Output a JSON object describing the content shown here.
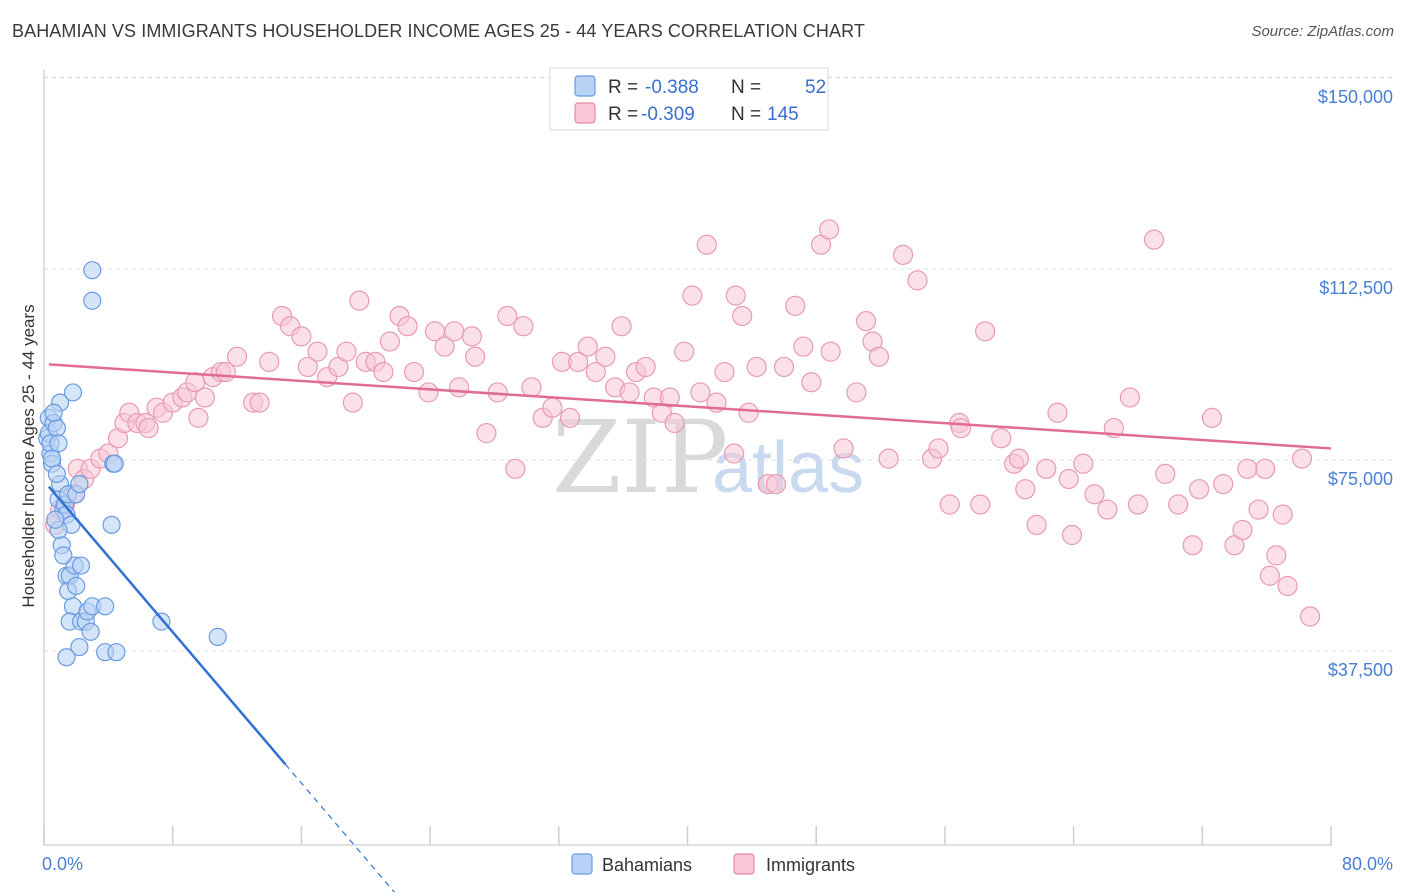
{
  "title": "BAHAMIAN VS IMMIGRANTS HOUSEHOLDER INCOME AGES 25 - 44 YEARS CORRELATION CHART",
  "source": "Source: ZipAtlas.com",
  "watermark": {
    "zip": "ZIP",
    "atlas": "atlas"
  },
  "legend": {
    "r_label": "R =",
    "n_label": "N =",
    "rows": [
      {
        "name": "Bahamians",
        "r": "-0.388",
        "n": "52",
        "fill": "#b8d2f5",
        "stroke": "#6a9be0"
      },
      {
        "name": "Immigrants",
        "r": "-0.309",
        "n": "145",
        "fill": "#f8c6d6",
        "stroke": "#e88aa8"
      }
    ]
  },
  "chart_data": {
    "type": "scatter",
    "xlabel": "",
    "ylabel": "Householder Income Ages 25 - 44 years",
    "xlim": [
      0,
      80
    ],
    "ylim": [
      0,
      150000
    ],
    "x_tick_labels": {
      "left": "0.0%",
      "right": "80.0%"
    },
    "y_ticks": [
      {
        "value": 150000,
        "label": "$150,000"
      },
      {
        "value": 112500,
        "label": "$112,500"
      },
      {
        "value": 75000,
        "label": "$75,000"
      },
      {
        "value": 37500,
        "label": "$37,500"
      }
    ],
    "series": [
      {
        "name": "Bahamians",
        "color": "#6a9be0",
        "fill": "#b8d2f5",
        "trend": {
          "x0": 0.3,
          "y0": 73500,
          "x1": 15.0,
          "y1": 19000,
          "dash_to_x": 22.0
        },
        "points": [
          [
            0.2,
            83000
          ],
          [
            0.3,
            87000
          ],
          [
            0.3,
            84000
          ],
          [
            0.4,
            80000
          ],
          [
            0.4,
            82000
          ],
          [
            0.5,
            78000
          ],
          [
            0.6,
            86000
          ],
          [
            0.5,
            79000
          ],
          [
            0.8,
            85000
          ],
          [
            0.9,
            82000
          ],
          [
            1.0,
            90000
          ],
          [
            1.0,
            74000
          ],
          [
            0.9,
            71000
          ],
          [
            1.2,
            69000
          ],
          [
            1.3,
            70000
          ],
          [
            1.4,
            68000
          ],
          [
            1.5,
            72000
          ],
          [
            1.8,
            92000
          ],
          [
            2.0,
            72000
          ],
          [
            2.2,
            74000
          ],
          [
            1.7,
            66000
          ],
          [
            1.1,
            62000
          ],
          [
            1.4,
            56000
          ],
          [
            1.6,
            56000
          ],
          [
            1.9,
            58000
          ],
          [
            2.3,
            58000
          ],
          [
            1.5,
            53000
          ],
          [
            1.8,
            50000
          ],
          [
            1.6,
            47000
          ],
          [
            2.3,
            47000
          ],
          [
            2.6,
            47000
          ],
          [
            2.7,
            49000
          ],
          [
            3.0,
            50000
          ],
          [
            3.8,
            50000
          ],
          [
            2.9,
            45000
          ],
          [
            2.2,
            42000
          ],
          [
            1.4,
            40000
          ],
          [
            3.8,
            41000
          ],
          [
            4.5,
            41000
          ],
          [
            4.3,
            78000
          ],
          [
            4.4,
            78000
          ],
          [
            4.2,
            66000
          ],
          [
            3.0,
            116000
          ],
          [
            3.0,
            110000
          ],
          [
            7.3,
            47000
          ],
          [
            10.8,
            44000
          ],
          [
            0.9,
            65000
          ],
          [
            0.7,
            67000
          ],
          [
            1.2,
            60000
          ],
          [
            2.0,
            54000
          ],
          [
            0.6,
            88000
          ],
          [
            0.8,
            76000
          ]
        ]
      },
      {
        "name": "Immigrants",
        "color": "#e06c93",
        "fill": "#f8c6d6",
        "trend": {
          "x0": 0.3,
          "y0": 97500,
          "x1": 80.0,
          "y1": 81000
        },
        "points": [
          [
            0.7,
            66000
          ],
          [
            1.0,
            69000
          ],
          [
            1.3,
            70000
          ],
          [
            1.8,
            72000
          ],
          [
            2.1,
            77000
          ],
          [
            2.5,
            75000
          ],
          [
            2.9,
            77000
          ],
          [
            3.5,
            79000
          ],
          [
            4.0,
            80000
          ],
          [
            4.6,
            83000
          ],
          [
            5.0,
            86000
          ],
          [
            5.3,
            88000
          ],
          [
            5.8,
            86000
          ],
          [
            6.3,
            86000
          ],
          [
            6.5,
            85000
          ],
          [
            7.0,
            89000
          ],
          [
            7.4,
            88000
          ],
          [
            8.0,
            90000
          ],
          [
            8.6,
            91000
          ],
          [
            8.9,
            92000
          ],
          [
            9.4,
            94000
          ],
          [
            9.6,
            87000
          ],
          [
            10.0,
            91000
          ],
          [
            10.5,
            95000
          ],
          [
            11.0,
            96000
          ],
          [
            11.3,
            96000
          ],
          [
            12.0,
            99000
          ],
          [
            13.0,
            90000
          ],
          [
            13.4,
            90000
          ],
          [
            14.0,
            98000
          ],
          [
            14.8,
            107000
          ],
          [
            15.3,
            105000
          ],
          [
            16.0,
            103000
          ],
          [
            16.4,
            97000
          ],
          [
            17.0,
            100000
          ],
          [
            17.6,
            95000
          ],
          [
            18.3,
            97000
          ],
          [
            18.8,
            100000
          ],
          [
            19.2,
            90000
          ],
          [
            19.6,
            110000
          ],
          [
            20.0,
            98000
          ],
          [
            20.6,
            98000
          ],
          [
            21.1,
            96000
          ],
          [
            21.5,
            102000
          ],
          [
            22.1,
            107000
          ],
          [
            22.6,
            105000
          ],
          [
            23.0,
            96000
          ],
          [
            23.9,
            92000
          ],
          [
            24.3,
            104000
          ],
          [
            24.9,
            101000
          ],
          [
            25.5,
            104000
          ],
          [
            25.8,
            93000
          ],
          [
            26.6,
            103000
          ],
          [
            26.8,
            99000
          ],
          [
            27.5,
            84000
          ],
          [
            28.2,
            92000
          ],
          [
            28.8,
            107000
          ],
          [
            29.3,
            77000
          ],
          [
            29.8,
            105000
          ],
          [
            30.3,
            93000
          ],
          [
            31.0,
            87000
          ],
          [
            31.6,
            89000
          ],
          [
            32.2,
            98000
          ],
          [
            32.7,
            87000
          ],
          [
            33.2,
            98000
          ],
          [
            33.8,
            101000
          ],
          [
            34.3,
            96000
          ],
          [
            34.9,
            99000
          ],
          [
            35.5,
            93000
          ],
          [
            35.9,
            105000
          ],
          [
            36.4,
            92000
          ],
          [
            36.8,
            96000
          ],
          [
            37.4,
            97000
          ],
          [
            37.9,
            91000
          ],
          [
            38.4,
            88000
          ],
          [
            38.9,
            91000
          ],
          [
            39.2,
            86000
          ],
          [
            39.8,
            100000
          ],
          [
            40.3,
            111000
          ],
          [
            40.8,
            92000
          ],
          [
            41.2,
            121000
          ],
          [
            41.8,
            90000
          ],
          [
            42.3,
            96000
          ],
          [
            42.9,
            80000
          ],
          [
            43.0,
            111000
          ],
          [
            43.4,
            107000
          ],
          [
            43.8,
            88000
          ],
          [
            44.3,
            97000
          ],
          [
            45.0,
            74000
          ],
          [
            45.5,
            74000
          ],
          [
            46.0,
            97000
          ],
          [
            46.7,
            109000
          ],
          [
            47.2,
            101000
          ],
          [
            47.7,
            94000
          ],
          [
            48.3,
            121000
          ],
          [
            48.8,
            124000
          ],
          [
            48.9,
            100000
          ],
          [
            49.7,
            81000
          ],
          [
            50.5,
            92000
          ],
          [
            51.1,
            106000
          ],
          [
            51.5,
            102000
          ],
          [
            51.9,
            99000
          ],
          [
            52.5,
            79000
          ],
          [
            53.4,
            119000
          ],
          [
            54.3,
            114000
          ],
          [
            55.2,
            79000
          ],
          [
            55.6,
            81000
          ],
          [
            56.3,
            70000
          ],
          [
            56.9,
            86000
          ],
          [
            57.0,
            85000
          ],
          [
            58.2,
            70000
          ],
          [
            58.5,
            104000
          ],
          [
            59.5,
            83000
          ],
          [
            60.3,
            78000
          ],
          [
            60.6,
            79000
          ],
          [
            61.0,
            73000
          ],
          [
            61.7,
            66000
          ],
          [
            62.3,
            77000
          ],
          [
            63.0,
            88000
          ],
          [
            63.7,
            75000
          ],
          [
            63.9,
            64000
          ],
          [
            64.6,
            78000
          ],
          [
            65.3,
            72000
          ],
          [
            66.1,
            69000
          ],
          [
            66.5,
            85000
          ],
          [
            67.5,
            91000
          ],
          [
            68.0,
            70000
          ],
          [
            69.0,
            122000
          ],
          [
            69.7,
            76000
          ],
          [
            70.5,
            70000
          ],
          [
            71.4,
            62000
          ],
          [
            71.8,
            73000
          ],
          [
            72.6,
            87000
          ],
          [
            73.3,
            74000
          ],
          [
            74.0,
            62000
          ],
          [
            74.5,
            65000
          ],
          [
            75.5,
            69000
          ],
          [
            75.9,
            77000
          ],
          [
            76.2,
            56000
          ],
          [
            76.6,
            60000
          ],
          [
            77.0,
            68000
          ],
          [
            77.3,
            54000
          ],
          [
            78.2,
            79000
          ],
          [
            78.7,
            48000
          ],
          [
            74.8,
            77000
          ]
        ]
      }
    ]
  }
}
